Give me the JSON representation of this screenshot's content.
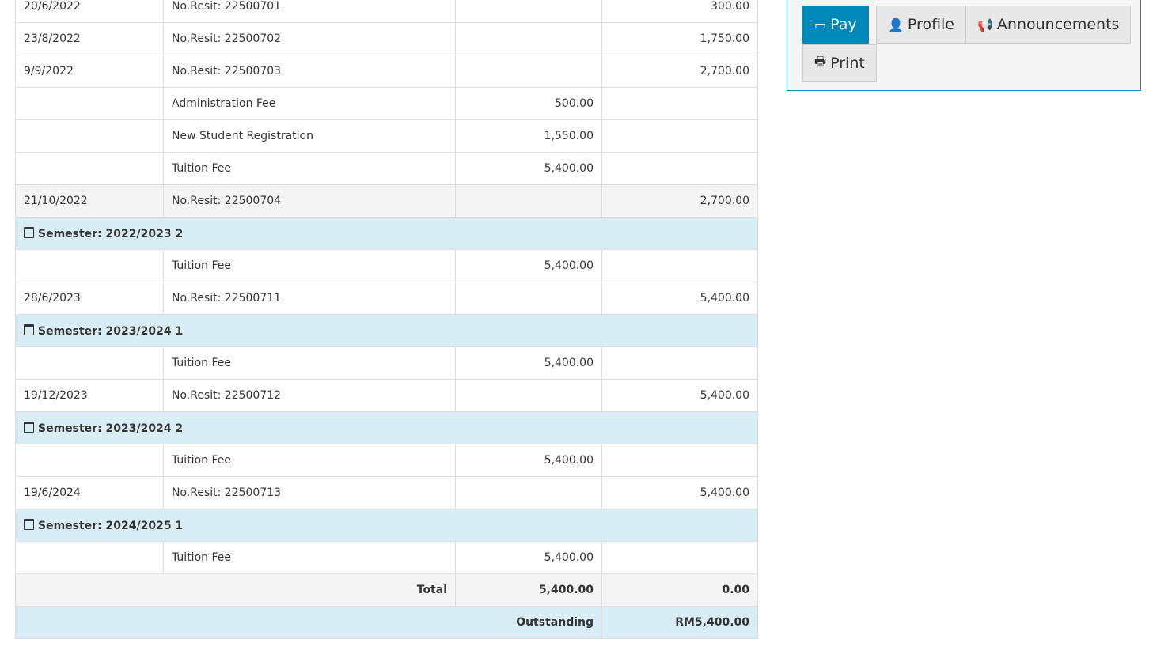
{
  "table": {
    "rows": [
      {
        "type": "row",
        "date": "20/6/2022",
        "desc": "No.Resit: 22500701",
        "debit": "",
        "credit": "300.00"
      },
      {
        "type": "row",
        "date": "23/8/2022",
        "desc": "No.Resit: 22500702",
        "debit": "",
        "credit": "1,750.00"
      },
      {
        "type": "row",
        "date": "9/9/2022",
        "desc": "No.Resit: 22500703",
        "debit": "",
        "credit": "2,700.00"
      },
      {
        "type": "row",
        "date": "",
        "desc": "Administration Fee",
        "debit": "500.00",
        "credit": ""
      },
      {
        "type": "row",
        "date": "",
        "desc": "New Student Registration",
        "debit": "1,550.00",
        "credit": ""
      },
      {
        "type": "row",
        "date": "",
        "desc": "Tuition Fee",
        "debit": "5,400.00",
        "credit": ""
      },
      {
        "type": "alt",
        "date": "21/10/2022",
        "desc": "No.Resit: 22500704",
        "debit": "",
        "credit": "2,700.00"
      },
      {
        "type": "semester",
        "label": "Semester: 2022/2023 2"
      },
      {
        "type": "row",
        "date": "",
        "desc": "Tuition Fee",
        "debit": "5,400.00",
        "credit": ""
      },
      {
        "type": "row",
        "date": "28/6/2023",
        "desc": "No.Resit: 22500711",
        "debit": "",
        "credit": "5,400.00"
      },
      {
        "type": "semester",
        "label": "Semester: 2023/2024 1"
      },
      {
        "type": "row",
        "date": "",
        "desc": "Tuition Fee",
        "debit": "5,400.00",
        "credit": ""
      },
      {
        "type": "row",
        "date": "19/12/2023",
        "desc": "No.Resit: 22500712",
        "debit": "",
        "credit": "5,400.00"
      },
      {
        "type": "semester",
        "label": "Semester: 2023/2024 2"
      },
      {
        "type": "row",
        "date": "",
        "desc": "Tuition Fee",
        "debit": "5,400.00",
        "credit": ""
      },
      {
        "type": "row",
        "date": "19/6/2024",
        "desc": "No.Resit: 22500713",
        "debit": "",
        "credit": "5,400.00"
      },
      {
        "type": "semester",
        "label": "Semester: 2024/2025 1"
      },
      {
        "type": "row",
        "date": "",
        "desc": "Tuition Fee",
        "debit": "5,400.00",
        "credit": ""
      }
    ],
    "total": {
      "label": "Total",
      "debit": "5,400.00",
      "credit": "0.00"
    },
    "outstanding": {
      "label": "Outstanding",
      "amount": "RM5,400.00"
    }
  },
  "actions": {
    "pay": "Pay",
    "profile": "Profile",
    "announcements": "Announcements",
    "print": "Print"
  },
  "colors": {
    "accent": "#0088b8",
    "semester_bg": "#d9edf7"
  }
}
